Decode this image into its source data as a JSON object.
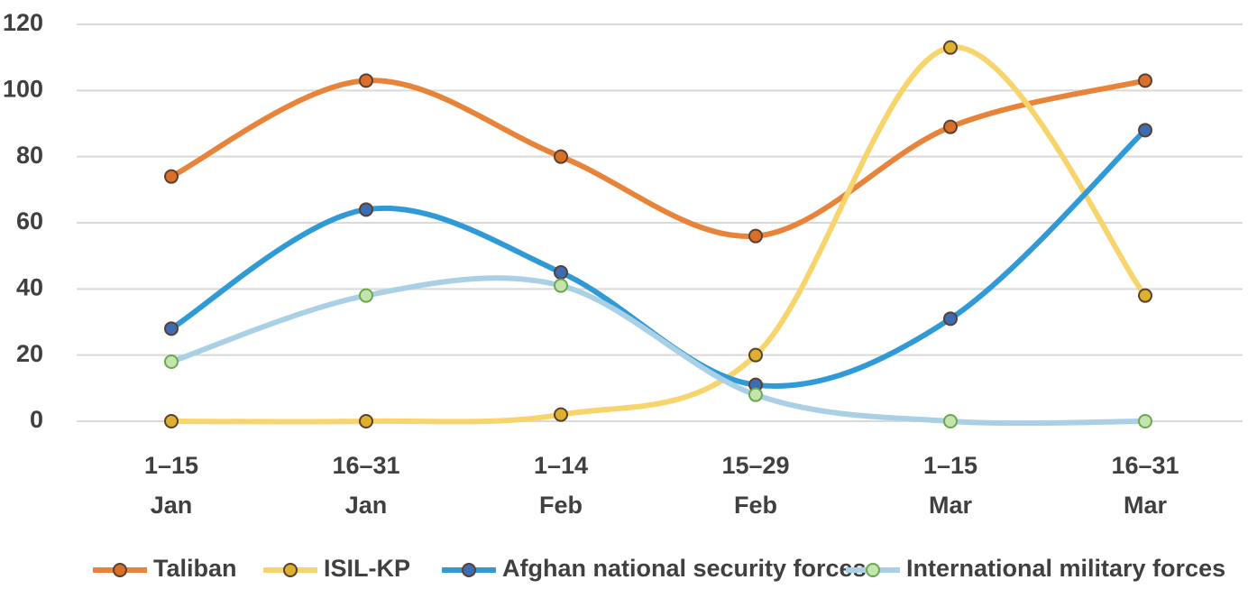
{
  "chart_data": {
    "type": "line",
    "categories": [
      [
        "1–15",
        "Jan"
      ],
      [
        "16–31",
        "Jan"
      ],
      [
        "1–14",
        "Feb"
      ],
      [
        "15–29",
        "Feb"
      ],
      [
        "1–15",
        "Mar"
      ],
      [
        "16–31",
        "Mar"
      ]
    ],
    "series": [
      {
        "name": "Taliban",
        "color": "#e8833a",
        "marker_color": "#d9702a",
        "values": [
          74,
          103,
          80,
          56,
          89,
          103
        ]
      },
      {
        "name": "ISIL-KP",
        "color": "#f8d46c",
        "marker_color": "#ddb030",
        "values": [
          0,
          0,
          2,
          20,
          113,
          38
        ]
      },
      {
        "name": "Afghan national security forces",
        "color": "#2f9ad5",
        "marker_color": "#3b6cb4",
        "values": [
          28,
          64,
          45,
          11,
          31,
          88
        ]
      },
      {
        "name": "International military forces",
        "color": "#a9d0e5",
        "marker_color": "#c4e4ae",
        "values": [
          18,
          38,
          41,
          8,
          0,
          0
        ]
      }
    ],
    "ylim": [
      0,
      120
    ],
    "yticks": [
      0,
      20,
      40,
      60,
      80,
      100,
      120
    ],
    "grid": true,
    "smooth": true,
    "legend": "bottom"
  }
}
